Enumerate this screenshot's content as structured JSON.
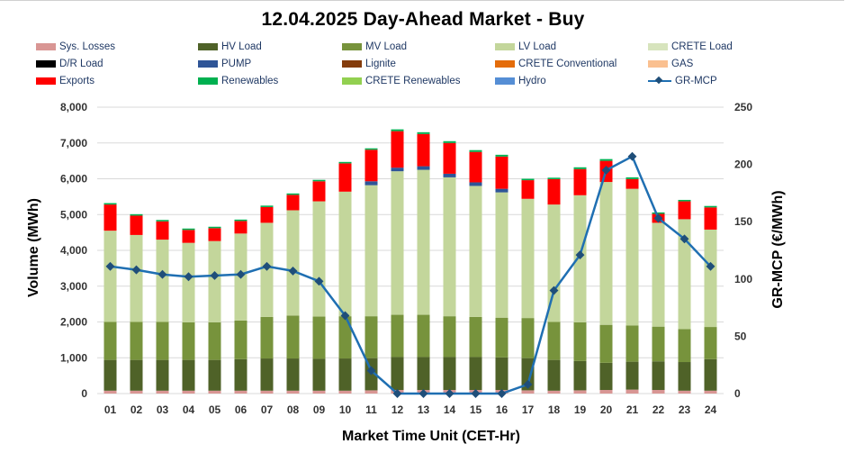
{
  "chart_data": {
    "type": "bar",
    "stacked": true,
    "title": "12.04.2025  Day-Ahead Market - Buy",
    "xlabel": "Market Time Unit (CET-Hr)",
    "ylabel": "Volume (MWh)",
    "y2label": "GR-MCP (€/MWh)",
    "ylim": [
      0,
      8000
    ],
    "y2lim": [
      0,
      250
    ],
    "yticks": [
      "0",
      "1,000",
      "2,000",
      "3,000",
      "4,000",
      "5,000",
      "6,000",
      "7,000",
      "8,000"
    ],
    "y2ticks": [
      "0",
      "50",
      "100",
      "150",
      "200",
      "250"
    ],
    "categories": [
      "01",
      "02",
      "03",
      "04",
      "05",
      "06",
      "07",
      "08",
      "09",
      "10",
      "11",
      "12",
      "13",
      "14",
      "15",
      "16",
      "17",
      "18",
      "19",
      "20",
      "21",
      "22",
      "23",
      "24"
    ],
    "legend": [
      {
        "name": "Sys. Losses",
        "color": "#d99694"
      },
      {
        "name": "HV Load",
        "color": "#4f6228"
      },
      {
        "name": "MV Load",
        "color": "#77933c"
      },
      {
        "name": "LV Load",
        "color": "#c3d69b"
      },
      {
        "name": "CRETE Load",
        "color": "#d7e4bd"
      },
      {
        "name": "D/R Load",
        "color": "#000000"
      },
      {
        "name": "PUMP",
        "color": "#2f5597"
      },
      {
        "name": "Lignite",
        "color": "#843c0c"
      },
      {
        "name": "CRETE Conventional",
        "color": "#e46c0a"
      },
      {
        "name": "GAS",
        "color": "#fac090"
      },
      {
        "name": "Exports",
        "color": "#ff0000"
      },
      {
        "name": "Renewables",
        "color": "#00b050"
      },
      {
        "name": "CRETE Renewables",
        "color": "#92d050"
      },
      {
        "name": "Hydro",
        "color": "#558ed5"
      },
      {
        "name": "GR-MCP",
        "color": "#1f6fb2"
      }
    ],
    "series": [
      {
        "name": "Sys. Losses",
        "color": "#d99694",
        "values": [
          80,
          80,
          80,
          80,
          80,
          80,
          80,
          80,
          80,
          80,
          90,
          100,
          100,
          100,
          100,
          100,
          90,
          80,
          90,
          100,
          110,
          100,
          80,
          80
        ]
      },
      {
        "name": "HV Load",
        "color": "#4f6228",
        "values": [
          860,
          860,
          860,
          860,
          860,
          880,
          900,
          900,
          890,
          900,
          900,
          920,
          920,
          920,
          920,
          910,
          900,
          860,
          820,
          760,
          780,
          800,
          800,
          880
        ]
      },
      {
        "name": "MV Load",
        "color": "#77933c",
        "values": [
          1060,
          1060,
          1060,
          1050,
          1050,
          1080,
          1160,
          1200,
          1180,
          1180,
          1170,
          1180,
          1180,
          1140,
          1120,
          1110,
          1120,
          1060,
          1080,
          1060,
          1010,
          970,
          920,
          900
        ]
      },
      {
        "name": "LV Load",
        "color": "#c3d69b",
        "values": [
          2550,
          2430,
          2300,
          2220,
          2270,
          2430,
          2630,
          2940,
          3220,
          3480,
          3660,
          4010,
          4050,
          3880,
          3660,
          3500,
          3330,
          3280,
          3550,
          3990,
          3820,
          2900,
          3070,
          2720
        ]
      },
      {
        "name": "CRETE Load",
        "color": "#d7e4bd",
        "values": [
          0,
          0,
          0,
          0,
          0,
          0,
          0,
          0,
          0,
          0,
          0,
          0,
          0,
          0,
          0,
          0,
          0,
          0,
          0,
          0,
          0,
          0,
          0,
          0
        ]
      },
      {
        "name": "D/R Load",
        "color": "#000000",
        "values": [
          0,
          0,
          0,
          0,
          0,
          0,
          0,
          0,
          0,
          0,
          0,
          0,
          0,
          0,
          0,
          0,
          0,
          0,
          0,
          0,
          0,
          0,
          0,
          0
        ]
      },
      {
        "name": "PUMP",
        "color": "#2f5597",
        "values": [
          0,
          0,
          0,
          0,
          0,
          0,
          0,
          0,
          0,
          0,
          110,
          100,
          100,
          100,
          100,
          100,
          0,
          0,
          0,
          0,
          0,
          0,
          0,
          0
        ]
      },
      {
        "name": "Lignite",
        "color": "#843c0c",
        "values": [
          0,
          0,
          0,
          0,
          0,
          0,
          0,
          0,
          0,
          0,
          0,
          0,
          0,
          0,
          0,
          0,
          0,
          0,
          0,
          0,
          0,
          0,
          0,
          0
        ]
      },
      {
        "name": "CRETE Conventional",
        "color": "#e46c0a",
        "values": [
          0,
          0,
          0,
          0,
          0,
          0,
          0,
          0,
          0,
          0,
          0,
          0,
          0,
          0,
          0,
          0,
          0,
          0,
          0,
          0,
          0,
          0,
          0,
          0
        ]
      },
      {
        "name": "GAS",
        "color": "#fac090",
        "values": [
          0,
          0,
          0,
          0,
          0,
          0,
          0,
          0,
          0,
          0,
          0,
          0,
          0,
          0,
          0,
          0,
          0,
          0,
          0,
          0,
          0,
          0,
          0,
          0
        ]
      },
      {
        "name": "Exports",
        "color": "#ff0000",
        "values": [
          730,
          540,
          510,
          360,
          360,
          350,
          440,
          430,
          560,
          790,
          880,
          1020,
          900,
          860,
          850,
          900,
          520,
          710,
          730,
          590,
          270,
          250,
          500,
          620
        ]
      },
      {
        "name": "Renewables",
        "color": "#00b050",
        "values": [
          40,
          40,
          40,
          40,
          40,
          40,
          40,
          40,
          40,
          40,
          40,
          50,
          50,
          50,
          50,
          50,
          40,
          40,
          50,
          50,
          50,
          40,
          40,
          40
        ]
      },
      {
        "name": "CRETE Renewables",
        "color": "#92d050",
        "values": [
          0,
          0,
          0,
          0,
          0,
          0,
          0,
          0,
          0,
          0,
          0,
          0,
          0,
          0,
          0,
          0,
          0,
          0,
          0,
          0,
          0,
          0,
          0,
          0
        ]
      },
      {
        "name": "Hydro",
        "color": "#558ed5",
        "values": [
          0,
          0,
          0,
          0,
          0,
          0,
          0,
          0,
          0,
          0,
          0,
          0,
          0,
          0,
          0,
          0,
          0,
          0,
          0,
          0,
          0,
          0,
          0,
          0
        ]
      }
    ],
    "line": {
      "name": "GR-MCP",
      "axis": "secondary",
      "color": "#1f6fb2",
      "values": [
        111,
        108,
        104,
        102,
        103,
        104,
        111,
        107,
        98,
        68,
        20,
        0,
        0,
        0,
        0,
        0,
        8,
        90,
        121,
        195,
        207,
        153,
        135,
        111
      ]
    }
  }
}
